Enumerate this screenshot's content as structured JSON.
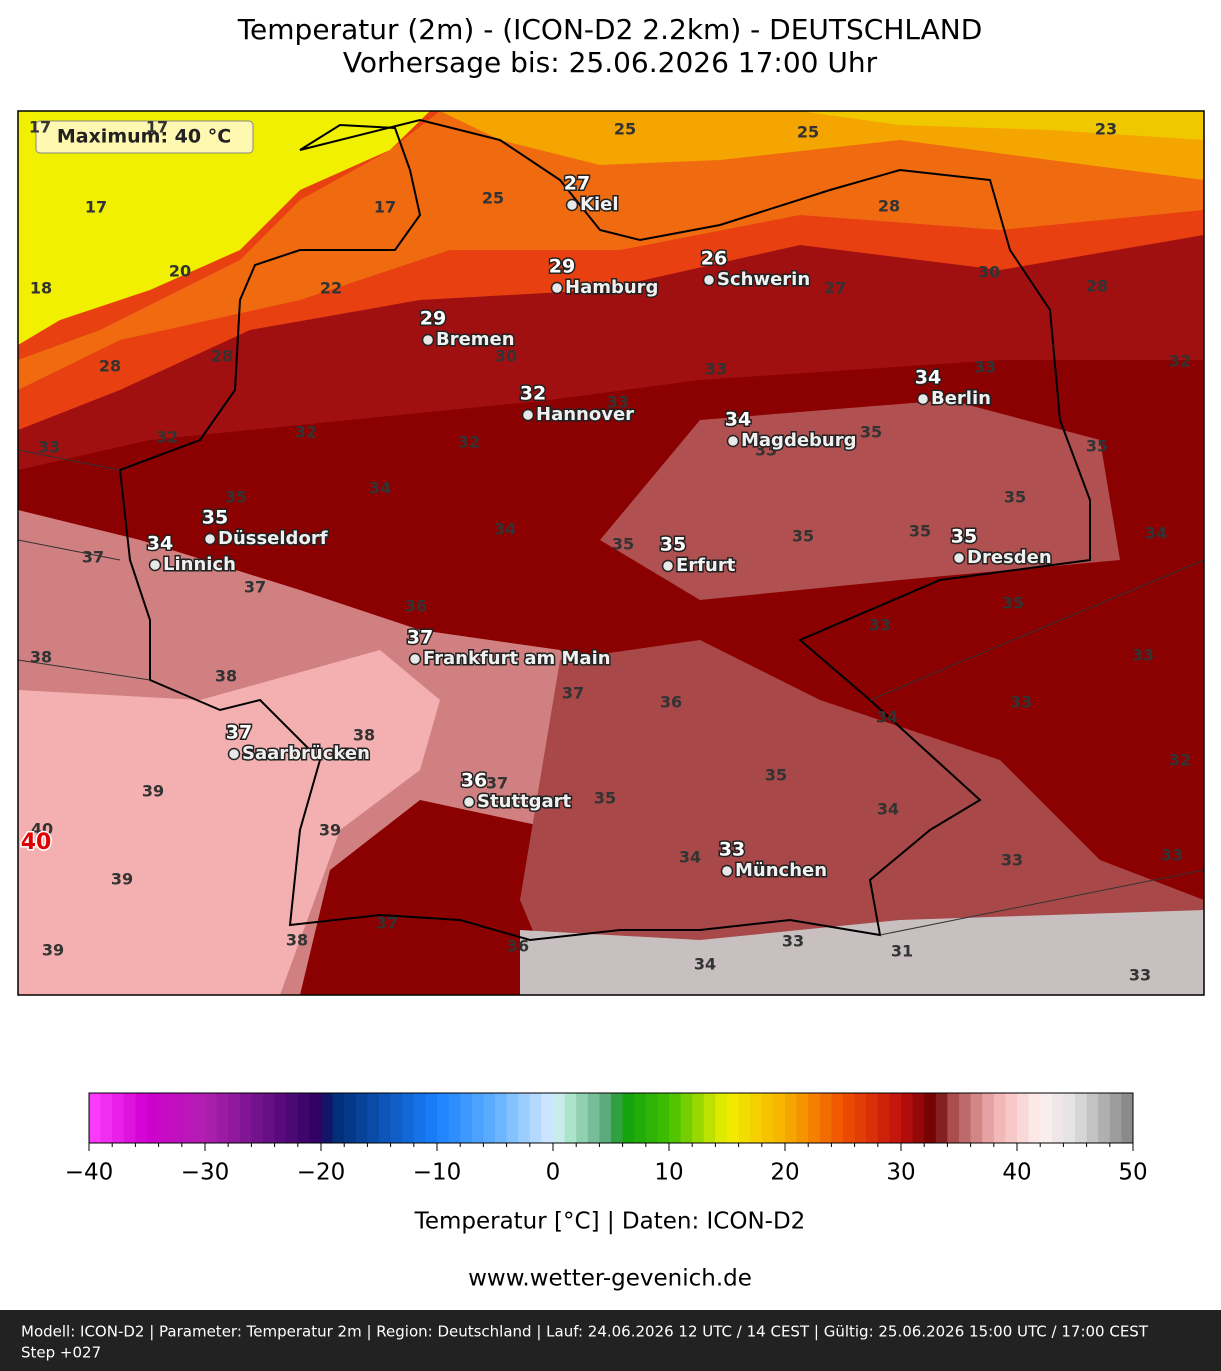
{
  "header": {
    "title": "Temperatur (2m) - (ICON-D2 2.2km) - DEUTSCHLAND",
    "subtitle": "Vorhersage bis: 25.06.2026 17:00 Uhr"
  },
  "map": {
    "maximum_label": "Maximum: 40 °C",
    "max_marker": 40,
    "cities": [
      {
        "name": "Kiel",
        "value": 27
      },
      {
        "name": "Hamburg",
        "value": 29
      },
      {
        "name": "Schwerin",
        "value": 26
      },
      {
        "name": "Bremen",
        "value": 29
      },
      {
        "name": "Hannover",
        "value": 32
      },
      {
        "name": "Berlin",
        "value": 34
      },
      {
        "name": "Magdeburg",
        "value": 34
      },
      {
        "name": "Düsseldorf",
        "value": 35
      },
      {
        "name": "Linnich",
        "value": 34
      },
      {
        "name": "Erfurt",
        "value": 35
      },
      {
        "name": "Dresden",
        "value": 35
      },
      {
        "name": "Frankfurt am Main",
        "value": 37
      },
      {
        "name": "Saarbrücken",
        "value": 37
      },
      {
        "name": "Stuttgart",
        "value": 36
      },
      {
        "name": "München",
        "value": 33
      }
    ],
    "contour_labels": [
      17,
      17,
      25,
      25,
      23,
      17,
      17,
      25,
      28,
      20,
      18,
      22,
      30,
      27,
      28,
      28,
      28,
      30,
      33,
      33,
      32,
      33,
      33,
      32,
      32,
      32,
      35,
      33,
      35,
      34,
      35,
      35,
      34,
      35,
      35,
      35,
      34,
      37,
      37,
      36,
      35,
      33,
      38,
      33,
      38,
      37,
      36,
      33,
      34,
      38,
      32,
      35,
      39,
      37,
      35,
      34,
      40,
      39,
      34,
      33,
      33,
      39,
      37,
      38,
      36,
      33,
      31,
      34,
      39,
      33
    ]
  },
  "colorbar": {
    "lim": [
      -40,
      50
    ],
    "ticks": [
      {
        "value": -40,
        "label": "−40"
      },
      {
        "value": -30,
        "label": "−30"
      },
      {
        "value": -20,
        "label": "−20"
      },
      {
        "value": -10,
        "label": "−10"
      },
      0,
      10,
      20,
      30,
      40,
      50
    ],
    "stops": [
      [
        -40,
        "#ff40ff"
      ],
      [
        -35,
        "#d000d0"
      ],
      [
        -30,
        "#b020b0"
      ],
      [
        -20,
        "#2a0060"
      ],
      [
        -19,
        "#002a70"
      ],
      [
        -10,
        "#1a80ff"
      ],
      [
        -5,
        "#60b0ff"
      ],
      [
        0,
        "#d8eaff"
      ],
      [
        1,
        "#b8ecd8"
      ],
      [
        5,
        "#50a070"
      ],
      [
        6,
        "#10a010"
      ],
      [
        10,
        "#40c000"
      ],
      [
        15,
        "#f0f000"
      ],
      [
        20,
        "#f8b000"
      ],
      [
        25,
        "#f05000"
      ],
      [
        30,
        "#c01010"
      ],
      [
        33,
        "#6a0000"
      ],
      [
        34,
        "#a04040"
      ],
      [
        38,
        "#f0b0b0"
      ],
      [
        42,
        "#fff0f0"
      ],
      [
        45,
        "#e0e0e0"
      ],
      [
        50,
        "#808080"
      ]
    ],
    "label": "Temperatur [°C] | Daten: ICON-D2"
  },
  "website": "www.wetter-gevenich.de",
  "footer": {
    "line1": "Modell: ICON-D2 | Parameter: Temperatur 2m | Region: Deutschland | Lauf: 24.06.2026 12 UTC / 14 CEST | Gültig: 25.06.2026 15:00 UTC / 17:00 CEST",
    "line2": "Step +027"
  }
}
